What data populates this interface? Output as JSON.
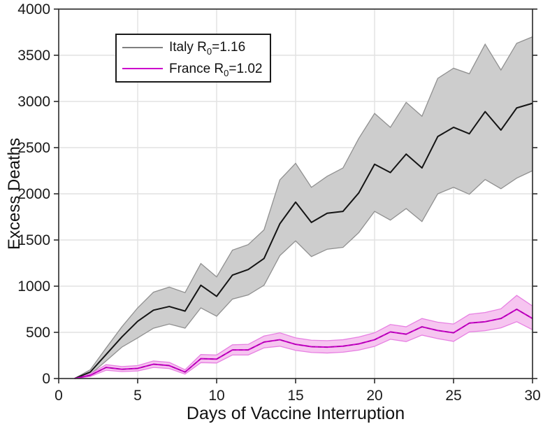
{
  "figure": {
    "background": "#ffffff",
    "frame_color": "#2b2b2b",
    "grid_color": "#e2e2e2",
    "text_color": "#1a1a1a",
    "muted_tick_color": "#8f8f8f"
  },
  "legend": {
    "items": [
      {
        "prefix": "Italy R",
        "sub": "0",
        "suffix": "=1.16",
        "swatch_color": "#7f7f7f"
      },
      {
        "prefix": "France R",
        "sub": "0",
        "suffix": "=1.02",
        "swatch_color": "#cc00cc"
      }
    ]
  },
  "chart_data": {
    "type": "line",
    "title": "",
    "xlabel": "Days of Vaccine Interruption",
    "ylabel": "Excess Deaths",
    "xlim": [
      0,
      30
    ],
    "ylim": [
      0,
      4000
    ],
    "xticks": [
      0,
      5,
      10,
      15,
      20,
      25,
      30
    ],
    "muted_xticks": [
      20
    ],
    "yticks": [
      0,
      500,
      1000,
      1500,
      2000,
      2500,
      3000,
      3500,
      4000
    ],
    "grid": true,
    "legend_position": "top-left",
    "x": [
      1,
      2,
      3,
      4,
      5,
      6,
      7,
      8,
      9,
      10,
      11,
      12,
      13,
      14,
      15,
      16,
      17,
      18,
      19,
      20,
      21,
      22,
      23,
      24,
      25,
      26,
      27,
      28,
      29,
      30
    ],
    "series": [
      {
        "name": "Italy R0=1.16",
        "line_color": "#141414",
        "band_fill": "#cdcdcd",
        "band_edge": "#909090",
        "dashed_overlay": false,
        "values": [
          0,
          70,
          260,
          450,
          620,
          740,
          780,
          730,
          1010,
          890,
          1120,
          1180,
          1300,
          1675,
          1910,
          1690,
          1790,
          1810,
          2010,
          2320,
          2230,
          2430,
          2280,
          2620,
          2720,
          2650,
          2890,
          2690,
          2930,
          2980
        ],
        "upper": [
          0,
          95,
          330,
          560,
          765,
          935,
          990,
          930,
          1245,
          1100,
          1390,
          1450,
          1610,
          2150,
          2330,
          2070,
          2190,
          2280,
          2600,
          2870,
          2720,
          2990,
          2840,
          3250,
          3360,
          3300,
          3620,
          3340,
          3630,
          3700
        ],
        "lower": [
          0,
          45,
          190,
          340,
          440,
          545,
          590,
          545,
          765,
          675,
          860,
          905,
          1010,
          1330,
          1490,
          1320,
          1400,
          1420,
          1580,
          1810,
          1715,
          1840,
          1700,
          2000,
          2070,
          1995,
          2155,
          2055,
          2170,
          2250
        ]
      },
      {
        "name": "France R0=1.02",
        "line_color": "#cc00cc",
        "band_fill": "#f6c5f0",
        "band_edge": "#e77fe2",
        "dashed_overlay": true,
        "dash_color": "#8b008b",
        "values": [
          0,
          35,
          120,
          100,
          110,
          155,
          140,
          70,
          215,
          210,
          310,
          310,
          395,
          420,
          370,
          345,
          340,
          350,
          375,
          420,
          505,
          480,
          560,
          520,
          495,
          600,
          615,
          650,
          750,
          650
        ],
        "upper": [
          0,
          50,
          150,
          130,
          140,
          190,
          175,
          95,
          260,
          255,
          365,
          370,
          460,
          495,
          440,
          415,
          410,
          420,
          450,
          495,
          585,
          560,
          650,
          610,
          590,
          695,
          715,
          755,
          900,
          785
        ],
        "lower": [
          0,
          22,
          90,
          75,
          82,
          120,
          108,
          48,
          172,
          168,
          255,
          255,
          332,
          350,
          305,
          282,
          276,
          285,
          308,
          348,
          425,
          400,
          470,
          432,
          402,
          505,
          518,
          548,
          615,
          528
        ]
      }
    ]
  }
}
